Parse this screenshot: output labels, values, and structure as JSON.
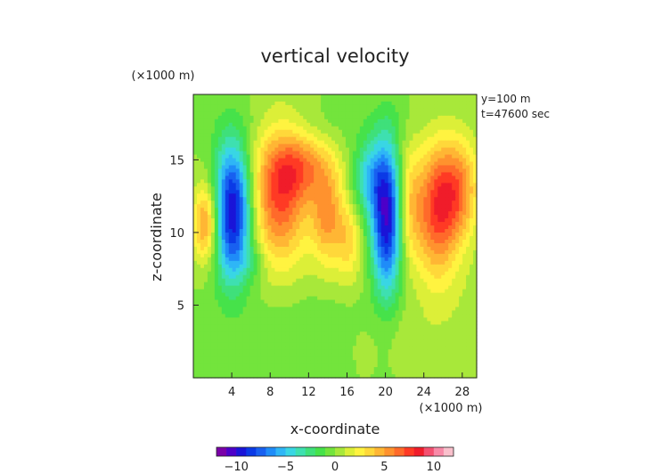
{
  "chart_data": {
    "type": "heatmap",
    "title": "vertical velocity",
    "xlabel": "x-coordinate",
    "ylabel": "z-coordinate",
    "x_unit": "(×1000 m)",
    "y_unit": "(×1000 m)",
    "annotations": [
      "y=100 m",
      "t=47600 sec"
    ],
    "x_range": [
      0,
      29.5
    ],
    "y_range": [
      0,
      19.5
    ],
    "x_ticks": [
      4,
      8,
      12,
      16,
      20,
      24,
      28
    ],
    "y_ticks": [
      5,
      10,
      15
    ],
    "colorbar": {
      "range": [
        -12,
        12
      ],
      "ticks": [
        -10,
        -5,
        0,
        5,
        10
      ],
      "colors": [
        "#7a00a8",
        "#4d00c8",
        "#1a14d8",
        "#0b3ae6",
        "#1860f0",
        "#1f8cf8",
        "#2fb6f6",
        "#39d6e4",
        "#3ee0b0",
        "#3fe07a",
        "#46e24a",
        "#73e43c",
        "#a8e83a",
        "#dcef38",
        "#fff340",
        "#ffd83a",
        "#ffb634",
        "#ff922e",
        "#ff6a2a",
        "#ff3a24",
        "#f01c2a",
        "#f45070",
        "#f88aa8",
        "#f9c0cc"
      ]
    },
    "features": [
      {
        "x": 4.0,
        "z": 11.5,
        "sx": 1.4,
        "sz": 3.2,
        "value": -11
      },
      {
        "x": 2.3,
        "z": 11.5,
        "sx": 1.2,
        "sz": 2.2,
        "value": 2
      },
      {
        "x": 1.2,
        "z": 10.5,
        "sx": 0.9,
        "sz": 1.8,
        "value": 5
      },
      {
        "x": 9.0,
        "z": 12.5,
        "sx": 2.1,
        "sz": 3.4,
        "value": 7
      },
      {
        "x": 11.8,
        "z": 14.5,
        "sx": 2.3,
        "sz": 1.6,
        "value": 4
      },
      {
        "x": 14.0,
        "z": 11.0,
        "sx": 1.2,
        "sz": 2.2,
        "value": 5
      },
      {
        "x": 16.2,
        "z": 9.5,
        "sx": 0.9,
        "sz": 1.8,
        "value": 3
      },
      {
        "x": 20.1,
        "z": 11.0,
        "sx": 1.1,
        "sz": 3.6,
        "value": -10
      },
      {
        "x": 18.2,
        "z": 13.8,
        "sx": 1.2,
        "sz": 1.8,
        "value": -4
      },
      {
        "x": 22.5,
        "z": 12.0,
        "sx": 0.9,
        "sz": 2.8,
        "value": 3
      },
      {
        "x": 25.3,
        "z": 11.5,
        "sx": 1.6,
        "sz": 3.2,
        "value": 7
      },
      {
        "x": 27.7,
        "z": 13.0,
        "sx": 1.5,
        "sz": 2.5,
        "value": 5
      },
      {
        "x": 6.0,
        "z": 8.0,
        "sx": 1.2,
        "sz": 0.9,
        "value": -1.5
      },
      {
        "x": 15.5,
        "z": 7.0,
        "sx": 2.5,
        "sz": 1.2,
        "value": 0.5
      },
      {
        "x": 11.0,
        "z": 4.0,
        "sx": 6.0,
        "sz": 2.0,
        "value": -0.6
      },
      {
        "x": 22.0,
        "z": 3.0,
        "sx": 4.0,
        "sz": 1.5,
        "value": 0.7
      },
      {
        "x": 27.0,
        "z": 6.0,
        "sx": 2.5,
        "sz": 2.0,
        "value": 0.6
      },
      {
        "x": 14.0,
        "z": 17.5,
        "sx": 8.0,
        "sz": 1.2,
        "value": -0.5
      }
    ]
  }
}
